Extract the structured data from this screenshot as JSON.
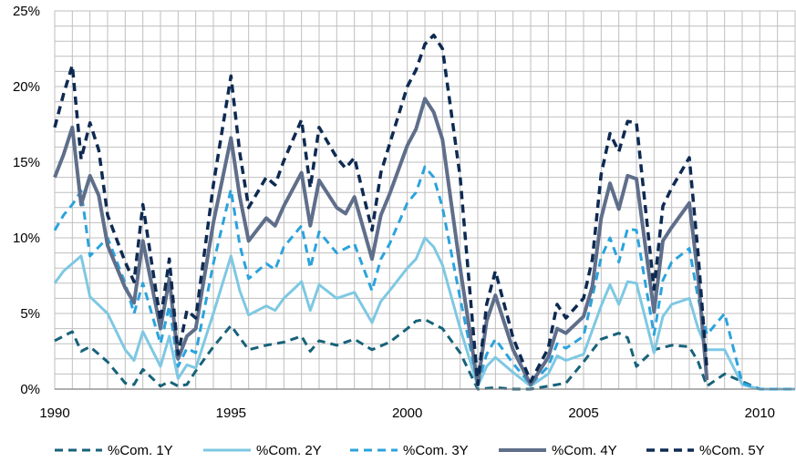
{
  "chart_data": {
    "type": "line",
    "grid": true,
    "legend_position": "bottom",
    "x_ticks": [
      "1990",
      "1995",
      "2000",
      "2005",
      "2010"
    ],
    "x_tick_values": [
      1990,
      1995,
      2000,
      2005,
      2010
    ],
    "y_ticks": [
      "0%",
      "5%",
      "10%",
      "15%",
      "20%",
      "25%"
    ],
    "y_tick_values": [
      0,
      5,
      10,
      15,
      20,
      25
    ],
    "xlim": [
      1990,
      2011
    ],
    "ylim": [
      0,
      25
    ],
    "series": [
      {
        "name": "%Com. 1Y",
        "color": "#17627a",
        "dash": "dashed",
        "width": 3,
        "x": [
          1990,
          1990.5,
          1990.75,
          1991,
          1991.5,
          1992,
          1992.25,
          1992.5,
          1993,
          1993.25,
          1993.5,
          1993.75,
          1994,
          1994.5,
          1995,
          1995.5,
          1996,
          1996.5,
          1997,
          1997.25,
          1997.5,
          1998,
          1998.5,
          1999,
          1999.5,
          2000,
          2000.25,
          2000.5,
          2001,
          2001.5,
          2002,
          2002.5,
          2003,
          2003.5,
          2004,
          2004.5,
          2005,
          2005.5,
          2006,
          2006.25,
          2006.5,
          2007,
          2007.5,
          2008,
          2008.25,
          2008.5,
          2009,
          2009.5,
          2010,
          2010.5,
          2011
        ],
        "y": [
          3.2,
          3.8,
          2.5,
          2.8,
          1.8,
          0.4,
          0.3,
          1.3,
          0.2,
          0.5,
          0.2,
          0.3,
          1.2,
          2.8,
          4.2,
          2.6,
          2.9,
          3.1,
          3.5,
          2.5,
          3.2,
          2.9,
          3.3,
          2.6,
          3.1,
          4.0,
          4.5,
          4.6,
          4.0,
          2.4,
          0.0,
          0.1,
          0.0,
          0.0,
          0.2,
          0.4,
          1.8,
          3.3,
          3.7,
          3.4,
          1.5,
          2.6,
          2.9,
          2.8,
          1.8,
          0.2,
          1.0,
          0.5,
          0.0,
          0.0,
          0.0
        ]
      },
      {
        "name": "%Com. 2Y",
        "color": "#7ec8e3",
        "dash": "solid",
        "width": 3,
        "x": [
          1990,
          1990.25,
          1990.75,
          1991,
          1991.5,
          1992,
          1992.25,
          1992.5,
          1993,
          1993.25,
          1993.5,
          1993.75,
          1994,
          1994.5,
          1995,
          1995.25,
          1995.5,
          1996,
          1996.25,
          1996.5,
          1997,
          1997.25,
          1997.5,
          1998,
          1998.5,
          1999,
          1999.25,
          1999.5,
          2000,
          2000.25,
          2000.5,
          2000.75,
          2001,
          2001.5,
          2002,
          2002.25,
          2002.5,
          2003,
          2003.5,
          2004,
          2004.25,
          2004.5,
          2005,
          2005.5,
          2005.75,
          2006,
          2006.25,
          2006.5,
          2007,
          2007.25,
          2007.5,
          2008,
          2008.25,
          2008.5,
          2009,
          2009.5,
          2010,
          2011
        ],
        "y": [
          7.0,
          7.8,
          8.8,
          6.1,
          5.0,
          2.6,
          1.9,
          3.8,
          1.5,
          3.5,
          0.7,
          1.6,
          1.4,
          5.0,
          8.8,
          6.5,
          4.9,
          5.5,
          5.2,
          6.0,
          7.1,
          5.2,
          6.9,
          6.0,
          6.4,
          4.4,
          5.8,
          6.5,
          8.0,
          8.6,
          10.0,
          9.4,
          8.2,
          4.0,
          0.2,
          1.5,
          2.1,
          1.1,
          0.2,
          1.0,
          2.2,
          1.9,
          2.3,
          5.5,
          6.9,
          5.6,
          7.1,
          7.0,
          2.4,
          4.8,
          5.6,
          6.0,
          4.0,
          2.6,
          2.6,
          0.3,
          0.0,
          0.0
        ]
      },
      {
        "name": "%Com. 3Y",
        "color": "#2ba3dd",
        "dash": "dashed",
        "width": 3,
        "x": [
          1990,
          1990.25,
          1990.5,
          1990.75,
          1991,
          1991.5,
          1992,
          1992.25,
          1992.5,
          1993,
          1993.25,
          1993.5,
          1993.75,
          1994,
          1994.5,
          1995,
          1995.25,
          1995.5,
          1996,
          1996.25,
          1996.5,
          1997,
          1997.25,
          1997.5,
          1998,
          1998.5,
          1999,
          1999.25,
          1999.5,
          2000,
          2000.25,
          2000.5,
          2000.75,
          2001,
          2001.5,
          2002,
          2002.25,
          2002.5,
          2003,
          2003.5,
          2004,
          2004.25,
          2004.5,
          2005,
          2005.5,
          2005.75,
          2006,
          2006.25,
          2006.5,
          2007,
          2007.25,
          2007.5,
          2008,
          2008.25,
          2008.5,
          2009,
          2009.5,
          2010,
          2011
        ],
        "y": [
          10.5,
          11.5,
          12.2,
          13.1,
          8.8,
          10.0,
          7.0,
          5.0,
          7.0,
          3.0,
          5.5,
          1.5,
          2.7,
          2.4,
          8.3,
          13.2,
          9.5,
          7.3,
          8.3,
          7.9,
          9.4,
          10.8,
          8.0,
          10.4,
          9.0,
          9.6,
          6.5,
          8.6,
          9.6,
          12.3,
          13.0,
          14.7,
          14.0,
          12.0,
          6.0,
          0.3,
          2.3,
          3.3,
          1.7,
          0.3,
          1.5,
          3.0,
          2.7,
          3.5,
          8.7,
          10.0,
          8.4,
          10.6,
          10.5,
          3.6,
          7.2,
          8.4,
          9.3,
          6.0,
          3.6,
          5.0,
          0.4,
          0.0,
          0.0
        ]
      },
      {
        "name": "%Com. 4Y",
        "color": "#5f6e8a",
        "dash": "solid",
        "width": 4,
        "x": [
          1990,
          1990.25,
          1990.5,
          1990.75,
          1991,
          1991.25,
          1991.5,
          1992,
          1992.25,
          1992.5,
          1993,
          1993.25,
          1993.5,
          1993.75,
          1994,
          1994.5,
          1995,
          1995.25,
          1995.5,
          1996,
          1996.25,
          1996.5,
          1997,
          1997.25,
          1997.5,
          1998,
          1998.25,
          1998.5,
          1999,
          1999.25,
          1999.5,
          2000,
          2000.25,
          2000.5,
          2000.75,
          2001,
          2001.5,
          2002,
          2002.25,
          2002.5,
          2003,
          2003.5,
          2004,
          2004.25,
          2004.5,
          2005,
          2005.25,
          2005.5,
          2005.75,
          2006,
          2006.25,
          2006.5,
          2007,
          2007.25,
          2007.5,
          2008,
          2008.25,
          2008.5
        ],
        "y": [
          14.0,
          15.5,
          17.3,
          12.2,
          14.1,
          12.8,
          9.5,
          6.7,
          5.7,
          9.8,
          4.0,
          7.3,
          2.0,
          3.5,
          4.0,
          11.0,
          16.6,
          12.7,
          9.8,
          11.3,
          10.8,
          12.1,
          14.3,
          10.8,
          13.8,
          12.0,
          11.6,
          12.7,
          8.6,
          11.5,
          12.9,
          16.1,
          17.2,
          19.2,
          18.3,
          16.5,
          8.0,
          0.3,
          4.5,
          6.2,
          2.6,
          0.3,
          2.1,
          4.0,
          3.7,
          4.8,
          6.8,
          11.3,
          13.6,
          11.9,
          14.1,
          13.9,
          5.1,
          9.8,
          10.7,
          12.3,
          7.4,
          0.6
        ]
      },
      {
        "name": "%Com. 5Y",
        "color": "#0e2a52",
        "dash": "dashed",
        "width": 3.5,
        "x": [
          1990,
          1990.25,
          1990.5,
          1990.75,
          1991,
          1991.25,
          1991.5,
          1992,
          1992.25,
          1992.5,
          1993,
          1993.25,
          1993.5,
          1993.75,
          1994,
          1994.5,
          1995,
          1995.25,
          1995.5,
          1996,
          1996.25,
          1996.5,
          1997,
          1997.25,
          1997.5,
          1998,
          1998.25,
          1998.5,
          1999,
          1999.25,
          1999.5,
          2000,
          2000.25,
          2000.5,
          2000.75,
          2001,
          2001.5,
          2002,
          2002.25,
          2002.5,
          2003,
          2003.5,
          2004,
          2004.25,
          2004.5,
          2005,
          2005.25,
          2005.5,
          2005.75,
          2006,
          2006.25,
          2006.5,
          2007,
          2007.25,
          2007.5,
          2008,
          2008.25,
          2008.5
        ],
        "y": [
          17.3,
          19.5,
          21.4,
          15.2,
          17.6,
          15.8,
          11.5,
          8.4,
          7.1,
          12.2,
          4.5,
          8.6,
          2.3,
          5.2,
          4.7,
          13.5,
          20.7,
          15.6,
          12.0,
          14.0,
          13.5,
          15.1,
          17.8,
          13.3,
          17.3,
          15.3,
          14.6,
          15.3,
          10.5,
          14.3,
          16.2,
          20.0,
          21.1,
          22.8,
          23.4,
          22.5,
          14.0,
          0.3,
          5.6,
          7.8,
          3.4,
          0.5,
          2.7,
          5.6,
          4.7,
          6.0,
          8.6,
          14.2,
          16.9,
          15.7,
          17.7,
          17.6,
          6.6,
          12.1,
          13.3,
          15.3,
          8.9,
          1.3
        ]
      }
    ]
  }
}
